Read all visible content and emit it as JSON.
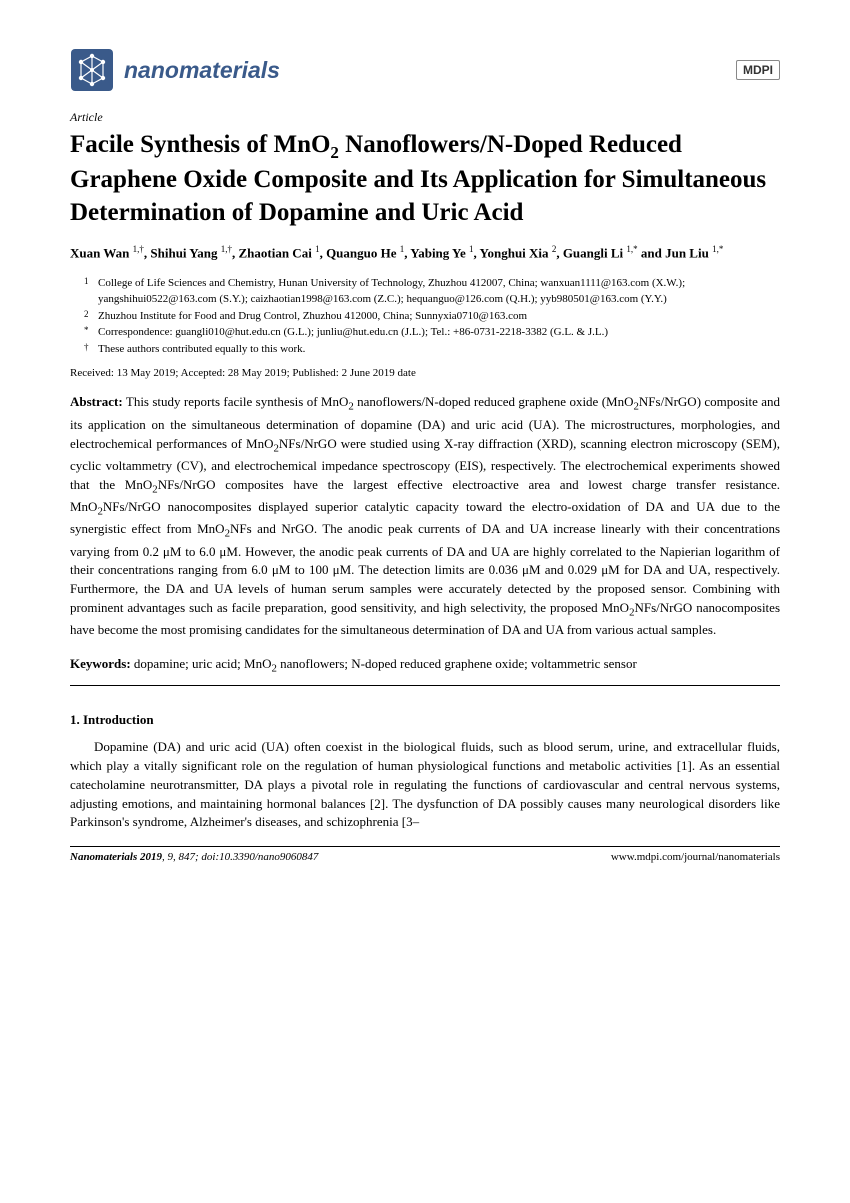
{
  "header": {
    "journal_name": "nanomaterials",
    "publisher": "MDPI"
  },
  "article": {
    "type": "Article",
    "title_html": "Facile Synthesis of MnO<sub>2</sub> Nanoflowers/N-Doped Reduced Graphene Oxide Composite and Its Application for Simultaneous Determination of Dopamine and Uric Acid",
    "authors_html": "Xuan Wan <sup>1,†</sup>, Shihui Yang <sup>1,†</sup>, Zhaotian Cai <sup>1</sup>, Quanguo He <sup>1</sup>, Yabing Ye <sup>1</sup>, Yonghui Xia <sup>2</sup>, Guangli Li <sup>1,*</sup> and Jun Liu <sup>1,*</sup>",
    "affiliations": [
      {
        "num": "1",
        "text": "College of Life Sciences and Chemistry, Hunan University of Technology, Zhuzhou 412007, China; wanxuan1111@163.com (X.W.); yangshihui0522@163.com (S.Y.); caizhaotian1998@163.com (Z.C.); hequanguo@126.com (Q.H.); yyb980501@163.com (Y.Y.)"
      },
      {
        "num": "2",
        "text": "Zhuzhou Institute for Food and Drug Control, Zhuzhou 412000, China; Sunnyxia0710@163.com"
      },
      {
        "num": "*",
        "text": "Correspondence: guangli010@hut.edu.cn (G.L.); junliu@hut.edu.cn (J.L.); Tel.: +86-0731-2218-3382 (G.L. & J.L.)"
      },
      {
        "num": "†",
        "text": "These authors contributed equally to this work."
      }
    ],
    "dates": "Received: 13 May 2019; Accepted: 28 May 2019; Published: 2 June 2019 date",
    "abstract_label": "Abstract:",
    "abstract_html": "This study reports facile synthesis of MnO<sub>2</sub> nanoflowers/N-doped reduced graphene oxide (MnO<sub>2</sub>NFs/NrGO) composite and its application on the simultaneous determination of dopamine (DA) and uric acid (UA). The microstructures, morphologies, and electrochemical performances of MnO<sub>2</sub>NFs/NrGO were studied using X-ray diffraction (XRD), scanning electron microscopy (SEM), cyclic voltammetry (CV), and electrochemical impedance spectroscopy (EIS), respectively. The electrochemical experiments showed that the MnO<sub>2</sub>NFs/NrGO composites have the largest effective electroactive area and lowest charge transfer resistance. MnO<sub>2</sub>NFs/NrGO nanocomposites displayed superior catalytic capacity toward the electro-oxidation of DA and UA due to the synergistic effect from MnO<sub>2</sub>NFs and NrGO. The anodic peak currents of DA and UA increase linearly with their concentrations varying from 0.2 μM to 6.0 μM. However, the anodic peak currents of DA and UA are highly correlated to the Napierian logarithm of their concentrations ranging from 6.0 μM to 100 μM. The detection limits are 0.036 μM and 0.029 μM for DA and UA, respectively. Furthermore, the DA and UA levels of human serum samples were accurately detected by the proposed sensor. Combining with prominent advantages such as facile preparation, good sensitivity, and high selectivity, the proposed MnO<sub>2</sub>NFs/NrGO nanocomposites have become the most promising candidates for the simultaneous determination of DA and UA from various actual samples.",
    "keywords_label": "Keywords:",
    "keywords_html": "dopamine; uric acid; MnO<sub>2</sub> nanoflowers; N-doped reduced graphene oxide; voltammetric sensor"
  },
  "introduction": {
    "heading": "1. Introduction",
    "body": "Dopamine (DA) and uric acid (UA) often coexist in the biological fluids, such as blood serum, urine, and extracellular fluids, which play a vitally significant role on the regulation of human physiological functions and metabolic activities [1]. As an essential catecholamine neurotransmitter, DA plays a pivotal role in regulating the functions of cardiovascular and central nervous systems, adjusting emotions, and maintaining hormonal balances [2]. The dysfunction of DA possibly causes many neurological disorders like Parkinson's syndrome, Alzheimer's diseases, and schizophrenia [3–"
  },
  "footer": {
    "citation_html": "<span class='jname'>Nanomaterials</span> <b>2019</b>, <i>9</i>, 847; doi:10.3390/nano9060847",
    "url": "www.mdpi.com/journal/nanomaterials"
  },
  "colors": {
    "brand": "#3a5a8a",
    "text": "#000000",
    "background": "#ffffff"
  }
}
